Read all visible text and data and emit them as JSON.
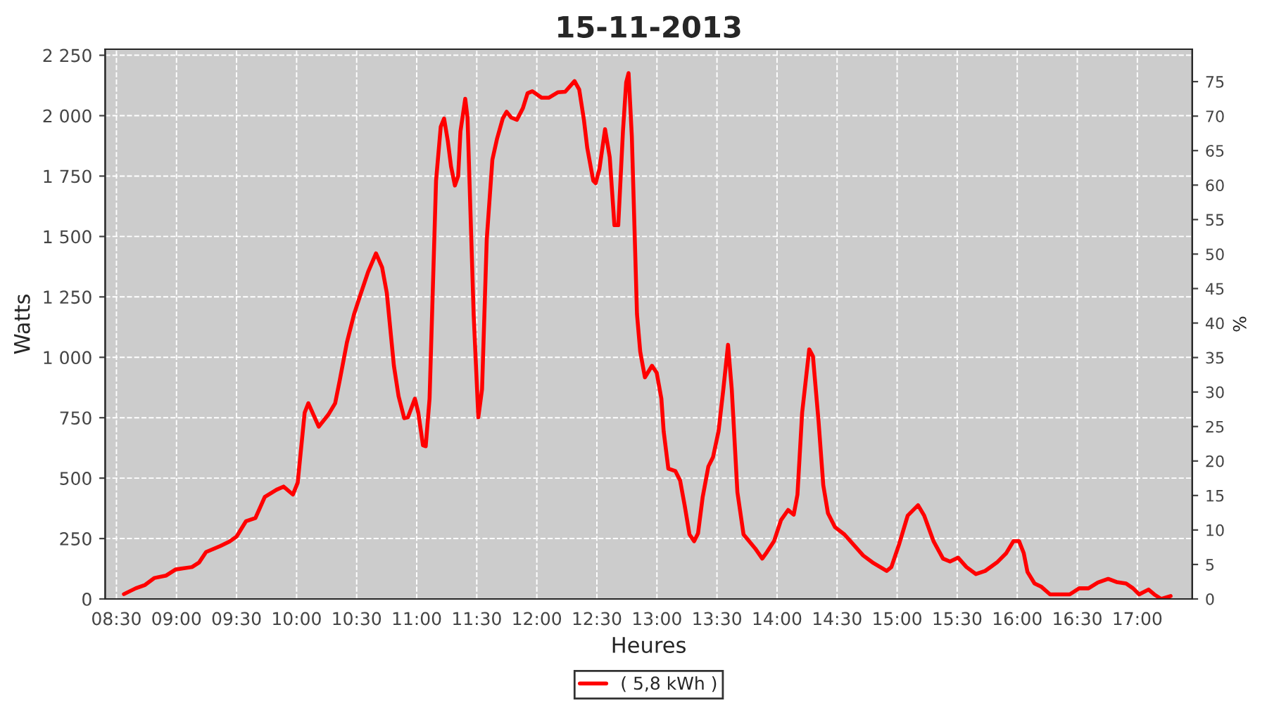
{
  "chart_data": {
    "type": "line",
    "title": "15-11-2013",
    "xlabel": "Heures",
    "ylabel": "Watts",
    "y2label": "%",
    "xlim": [
      8.406,
      17.457
    ],
    "xticks": [
      {
        "value": 8.5,
        "label": "08:30"
      },
      {
        "value": 9,
        "label": "09:00"
      },
      {
        "value": 9.5,
        "label": "09:30"
      },
      {
        "value": 10,
        "label": "10:00"
      },
      {
        "value": 10.5,
        "label": "10:30"
      },
      {
        "value": 11,
        "label": "11:00"
      },
      {
        "value": 11.5,
        "label": "11:30"
      },
      {
        "value": 12,
        "label": "12:00"
      },
      {
        "value": 12.5,
        "label": "12:30"
      },
      {
        "value": 13,
        "label": "13:00"
      },
      {
        "value": 13.5,
        "label": "13:30"
      },
      {
        "value": 14,
        "label": "14:00"
      },
      {
        "value": 14.5,
        "label": "14:30"
      },
      {
        "value": 15,
        "label": "15:00"
      },
      {
        "value": 15.5,
        "label": "15:30"
      },
      {
        "value": 16,
        "label": "16:00"
      },
      {
        "value": 16.5,
        "label": "16:30"
      },
      {
        "value": 17,
        "label": "17:00"
      }
    ],
    "ylim": [
      0,
      2275
    ],
    "yticks": [
      0,
      250,
      500,
      750,
      {
        "value": 1000,
        "label": "1 000"
      },
      {
        "value": 1250,
        "label": "1 250"
      },
      {
        "value": 1500,
        "label": "1 500"
      },
      {
        "value": 1750,
        "label": "1 750"
      },
      {
        "value": 2000,
        "label": "2 000"
      },
      {
        "value": 2250,
        "label": "2 250"
      }
    ],
    "y2lim": [
      0,
      79.7
    ],
    "y2ticks": [
      0,
      5,
      10,
      15,
      20,
      25,
      30,
      35,
      40,
      45,
      50,
      55,
      60,
      65,
      70,
      75
    ],
    "grid": true,
    "legend": "bottom",
    "marker": "none",
    "line_style": "solid",
    "series": [
      {
        "name": "( 5,8 kWh )",
        "color": "#ff0000",
        "x": [
          8.562,
          8.66,
          8.738,
          8.817,
          8.914,
          8.992,
          9.129,
          9.188,
          9.246,
          9.364,
          9.442,
          9.5,
          9.579,
          9.657,
          9.735,
          9.833,
          9.891,
          9.969,
          10.009,
          10.067,
          10.098,
          10.184,
          10.263,
          10.321,
          10.36,
          10.419,
          10.478,
          10.536,
          10.595,
          10.661,
          10.712,
          10.751,
          10.81,
          10.849,
          10.896,
          10.927,
          10.985,
          11.013,
          11.052,
          11.075,
          11.107,
          11.161,
          11.2,
          11.228,
          11.259,
          11.286,
          11.318,
          11.345,
          11.364,
          11.404,
          11.423,
          11.474,
          11.513,
          11.544,
          11.583,
          11.63,
          11.669,
          11.716,
          11.748,
          11.787,
          11.834,
          11.884,
          11.923,
          11.962,
          12.041,
          12.099,
          12.177,
          12.236,
          12.314,
          12.353,
          12.392,
          12.42,
          12.47,
          12.49,
          12.521,
          12.568,
          12.607,
          12.646,
          12.678,
          12.717,
          12.744,
          12.764,
          12.791,
          12.834,
          12.861,
          12.9,
          12.959,
          12.998,
          13.037,
          13.056,
          13.095,
          13.154,
          13.193,
          13.232,
          13.271,
          13.31,
          13.342,
          13.381,
          13.428,
          13.467,
          13.513,
          13.553,
          13.592,
          13.623,
          13.67,
          13.721,
          13.818,
          13.877,
          13.916,
          13.975,
          14.033,
          14.092,
          14.139,
          14.17,
          14.209,
          14.268,
          14.299,
          14.346,
          14.385,
          14.424,
          14.483,
          14.561,
          14.717,
          14.795,
          14.913,
          14.952,
          15.018,
          15.088,
          15.174,
          15.225,
          15.303,
          15.382,
          15.44,
          15.507,
          15.577,
          15.655,
          15.733,
          15.831,
          15.909,
          15.968,
          16.015,
          16.054,
          16.085,
          16.144,
          16.202,
          16.273,
          16.437,
          16.515,
          16.593,
          16.671,
          16.757,
          16.827,
          16.906,
          16.964,
          17.015,
          17.093,
          17.14,
          17.199,
          17.277
        ],
        "values": [
          20,
          44,
          58,
          87,
          97,
          122,
          132,
          151,
          194,
          219,
          238,
          258,
          322,
          335,
          422,
          452,
          465,
          432,
          481,
          771,
          810,
          713,
          762,
          810,
          907,
          1062,
          1178,
          1266,
          1353,
          1430,
          1372,
          1266,
          965,
          839,
          748,
          752,
          829,
          771,
          636,
          632,
          829,
          1731,
          1954,
          1988,
          1895,
          1789,
          1711,
          1750,
          1934,
          2070,
          1992,
          1178,
          752,
          868,
          1488,
          1818,
          1905,
          1988,
          2016,
          1992,
          1983,
          2031,
          2093,
          2101,
          2074,
          2074,
          2097,
          2099,
          2143,
          2108,
          1983,
          1866,
          1731,
          1721,
          1779,
          1944,
          1828,
          1547,
          1547,
          1934,
          2138,
          2176,
          1915,
          1178,
          1023,
          917,
          965,
          936,
          829,
          694,
          539,
          529,
          490,
          384,
          267,
          239,
          271,
          422,
          548,
          587,
          694,
          868,
          1052,
          868,
          442,
          267,
          209,
          167,
          194,
          239,
          326,
          368,
          349,
          432,
          771,
          1033,
          1004,
          733,
          471,
          355,
          297,
          267,
          180,
          151,
          116,
          132,
          229,
          345,
          388,
          345,
          239,
          167,
          155,
          171,
          132,
          103,
          116,
          151,
          190,
          239,
          239,
          190,
          112,
          64,
          50,
          19,
          19,
          44,
          44,
          68,
          83,
          70,
          64,
          44,
          19,
          39,
          19,
          0,
          12
        ]
      }
    ]
  }
}
